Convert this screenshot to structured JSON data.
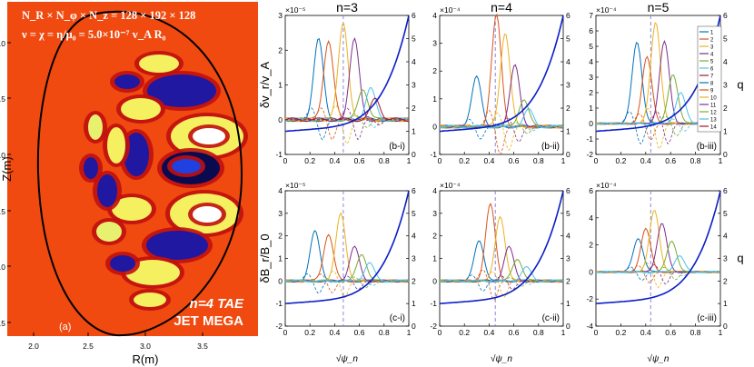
{
  "left_panel": {
    "grid_text": "N_R × N_φ × N_z = 128 × 192 × 128",
    "visc_text": "ν = χ = η/μ₀ = 5.0×10⁻⁷ v_A R₀",
    "mode_text": "n=4 TAE",
    "code_text": "JET MEGA",
    "panel_tag": "(a)",
    "xlabel": "R(m)",
    "ylabel": "Z(m)",
    "xticks": [
      "2.0",
      "2.5",
      "3.0",
      "3.5"
    ],
    "yticks": [
      "1.0",
      "0.5",
      "0.0",
      "-0.5",
      "-1.0",
      "-1.5"
    ]
  },
  "column_titles": [
    "n=3",
    "n=4",
    "n=5"
  ],
  "row_labels": [
    "δv_r/v_A",
    "δB_r/B_0"
  ],
  "x_axis_label": "√ψ_n",
  "q_label": "q",
  "legend": [
    "1",
    "2",
    "3",
    "4",
    "5",
    "6",
    "7",
    "8",
    "9",
    "10",
    "11",
    "12",
    "13",
    "14"
  ],
  "colors": {
    "q_profile": "#0a1ec8",
    "dashed_marker": "#7a7ad8",
    "bg_plasma": "#f04a10",
    "series": [
      "#0072BD",
      "#D95319",
      "#EDB120",
      "#7E2F8E",
      "#77AC30",
      "#4DBEEE",
      "#A2142F",
      "#0072BD",
      "#D95319",
      "#EDB120",
      "#7E2F8E",
      "#77AC30",
      "#4DBEEE",
      "#A2142F"
    ]
  },
  "chart_data": [
    {
      "type": "line",
      "panel": "(b-i)",
      "exponent": "×10⁻⁵",
      "ylim": [
        -1,
        3
      ],
      "yticks": [
        "-1",
        "0",
        "1",
        "2",
        "3"
      ],
      "q_ylim": [
        0,
        6
      ],
      "q_ticks": [
        "0",
        "1",
        "2",
        "3",
        "4",
        "5",
        "6"
      ],
      "x_ticks": [
        "0",
        "0.2",
        "0.4",
        "0.6",
        "0.8",
        "1"
      ],
      "vline_x": 0.47,
      "series": [
        {
          "peak": 0.27,
          "amp": 2.3
        },
        {
          "peak": 0.35,
          "amp": 2.3
        },
        {
          "peak": 0.47,
          "amp": 2.8
        },
        {
          "peak": 0.56,
          "amp": 2.3
        },
        {
          "peak": 0.63,
          "amp": 0.9
        },
        {
          "peak": 0.69,
          "amp": 0.9
        },
        {
          "peak": 0.73,
          "amp": 0.6
        }
      ]
    },
    {
      "type": "line",
      "panel": "(b-ii)",
      "exponent": "×10⁻⁴",
      "ylim": [
        -1,
        4
      ],
      "yticks": [
        "-1",
        "0",
        "1",
        "2",
        "3",
        "4"
      ],
      "q_ylim": [
        0,
        6
      ],
      "q_ticks": [
        "0",
        "1",
        "2",
        "3",
        "4",
        "5",
        "6"
      ],
      "x_ticks": [
        "0",
        "0.2",
        "0.4",
        "0.6",
        "0.8",
        "1"
      ],
      "vline_x": 0.45,
      "series": [
        {
          "peak": 0.3,
          "amp": 1.8
        },
        {
          "peak": 0.46,
          "amp": 4.0
        },
        {
          "peak": 0.53,
          "amp": 3.4
        },
        {
          "peak": 0.61,
          "amp": 2.2
        },
        {
          "peak": 0.68,
          "amp": 1.0
        },
        {
          "peak": 0.72,
          "amp": 0.6
        }
      ]
    },
    {
      "type": "line",
      "panel": "(b-iii)",
      "exponent": "×10⁻⁴",
      "ylim": [
        -2,
        7
      ],
      "yticks": [
        "-2",
        "-1",
        "0",
        "1",
        "2",
        "3",
        "4",
        "5",
        "6",
        "7"
      ],
      "q_ylim": [
        0,
        6
      ],
      "q_ticks": [
        "0",
        "1",
        "2",
        "3",
        "4",
        "5",
        "6"
      ],
      "x_ticks": [
        "0",
        "0.2",
        "0.4",
        "0.6",
        "0.8",
        "1"
      ],
      "vline_x": 0.44,
      "series": [
        {
          "peak": 0.33,
          "amp": 5.3
        },
        {
          "peak": 0.41,
          "amp": 4.3
        },
        {
          "peak": 0.48,
          "amp": 6.6
        },
        {
          "peak": 0.55,
          "amp": 5.3
        },
        {
          "peak": 0.62,
          "amp": 3.2
        },
        {
          "peak": 0.68,
          "amp": 2.0
        }
      ]
    },
    {
      "type": "line",
      "panel": "(c-i)",
      "exponent": "×10⁻⁵",
      "ylim": [
        -2,
        4
      ],
      "yticks": [
        "-2",
        "-1",
        "0",
        "1",
        "2",
        "3",
        "4"
      ],
      "q_ylim": [
        0,
        6
      ],
      "q_ticks": [
        "0",
        "1",
        "2",
        "3",
        "4",
        "5",
        "6"
      ],
      "x_ticks": [
        "0",
        "0.2",
        "0.4",
        "0.6",
        "0.8",
        "1"
      ],
      "vline_x": 0.47,
      "series": [
        {
          "peak": 0.24,
          "amp": 2.2
        },
        {
          "peak": 0.35,
          "amp": 2.1
        },
        {
          "peak": 0.45,
          "amp": 3.0
        },
        {
          "peak": 0.56,
          "amp": 1.5
        },
        {
          "peak": 0.62,
          "amp": 1.2
        },
        {
          "peak": 0.68,
          "amp": 0.8
        }
      ]
    },
    {
      "type": "line",
      "panel": "(c-ii)",
      "exponent": "×10⁻⁴",
      "ylim": [
        -2,
        4
      ],
      "yticks": [
        "-2",
        "-1",
        "0",
        "1",
        "2",
        "3",
        "4"
      ],
      "q_ylim": [
        0,
        6
      ],
      "q_ticks": [
        "0",
        "1",
        "2",
        "3",
        "4",
        "5",
        "6"
      ],
      "x_ticks": [
        "0",
        "0.2",
        "0.4",
        "0.6",
        "0.8",
        "1"
      ],
      "vline_x": 0.45,
      "series": [
        {
          "peak": 0.32,
          "amp": 1.8
        },
        {
          "peak": 0.41,
          "amp": 3.4
        },
        {
          "peak": 0.49,
          "amp": 2.9
        },
        {
          "peak": 0.56,
          "amp": 1.5
        },
        {
          "peak": 0.63,
          "amp": 1.0
        },
        {
          "peak": 0.7,
          "amp": 0.6
        }
      ]
    },
    {
      "type": "line",
      "panel": "(c-iii)",
      "exponent": "×10⁻⁴",
      "ylim": [
        -4,
        6
      ],
      "yticks": [
        "-4",
        "-2",
        "0",
        "2",
        "4",
        "6"
      ],
      "q_ylim": [
        0,
        6
      ],
      "q_ticks": [
        "0",
        "1",
        "2",
        "3",
        "4",
        "5",
        "6"
      ],
      "x_ticks": [
        "0",
        "0.2",
        "0.4",
        "0.6",
        "0.8",
        "1"
      ],
      "vline_x": 0.44,
      "series": [
        {
          "peak": 0.34,
          "amp": 2.5
        },
        {
          "peak": 0.4,
          "amp": 3.2
        },
        {
          "peak": 0.47,
          "amp": 4.6
        },
        {
          "peak": 0.53,
          "amp": 3.6
        },
        {
          "peak": 0.61,
          "amp": 2.3
        },
        {
          "peak": 0.67,
          "amp": 1.2
        }
      ]
    }
  ]
}
